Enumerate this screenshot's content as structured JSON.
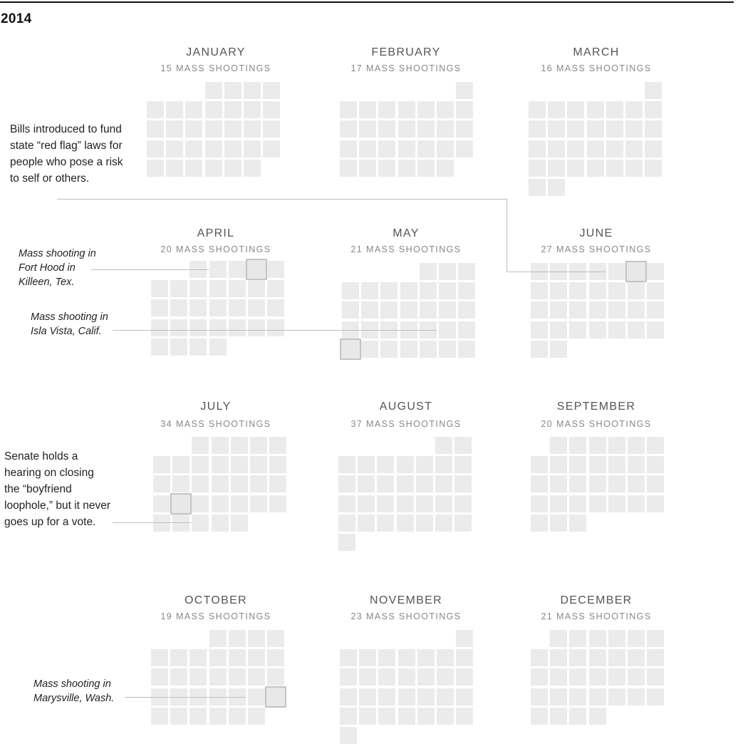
{
  "year": "2014",
  "colors": {
    "cell": "#ebebeb",
    "highlight_border": "#c4c4c4",
    "leader_line": "#bdbdbd",
    "rule": "#111111"
  },
  "months": [
    {
      "id": "january",
      "name": "JANUARY",
      "count_label": "15 MASS SHOOTINGS",
      "count": 15
    },
    {
      "id": "february",
      "name": "FEBRUARY",
      "count_label": "17 MASS SHOOTINGS",
      "count": 17
    },
    {
      "id": "march",
      "name": "MARCH",
      "count_label": "16 MASS SHOOTINGS",
      "count": 16
    },
    {
      "id": "april",
      "name": "APRIL",
      "count_label": "20 MASS SHOOTINGS",
      "count": 20
    },
    {
      "id": "may",
      "name": "MAY",
      "count_label": "21 MASS SHOOTINGS",
      "count": 21
    },
    {
      "id": "june",
      "name": "JUNE",
      "count_label": "27 MASS SHOOTINGS",
      "count": 27
    },
    {
      "id": "july",
      "name": "JULY",
      "count_label": "34 MASS SHOOTINGS",
      "count": 34
    },
    {
      "id": "august",
      "name": "AUGUST",
      "count_label": "37 MASS SHOOTINGS",
      "count": 37
    },
    {
      "id": "september",
      "name": "SEPTEMBER",
      "count_label": "20 MASS SHOOTINGS",
      "count": 20
    },
    {
      "id": "october",
      "name": "OCTOBER",
      "count_label": "19 MASS SHOOTINGS",
      "count": 19
    },
    {
      "id": "november",
      "name": "NOVEMBER",
      "count_label": "23 MASS SHOOTINGS",
      "count": 23
    },
    {
      "id": "december",
      "name": "DECEMBER",
      "count_label": "21 MASS SHOOTINGS",
      "count": 21
    }
  ],
  "annotations": {
    "red_flag": "Bills introduced to fund state “red flag” laws for people who pose a risk to self or others.",
    "fort_hood": "Mass shooting in Fort Hood in Killeen, Tex.",
    "isla_vista": "Mass shooting in Isla Vista, Calif.",
    "boyfriend": "Senate holds a hearing on closing the “boyfriend loophole,” but it never goes up for a vote.",
    "marysville": "Mass shooting in Marysville, Wash."
  }
}
